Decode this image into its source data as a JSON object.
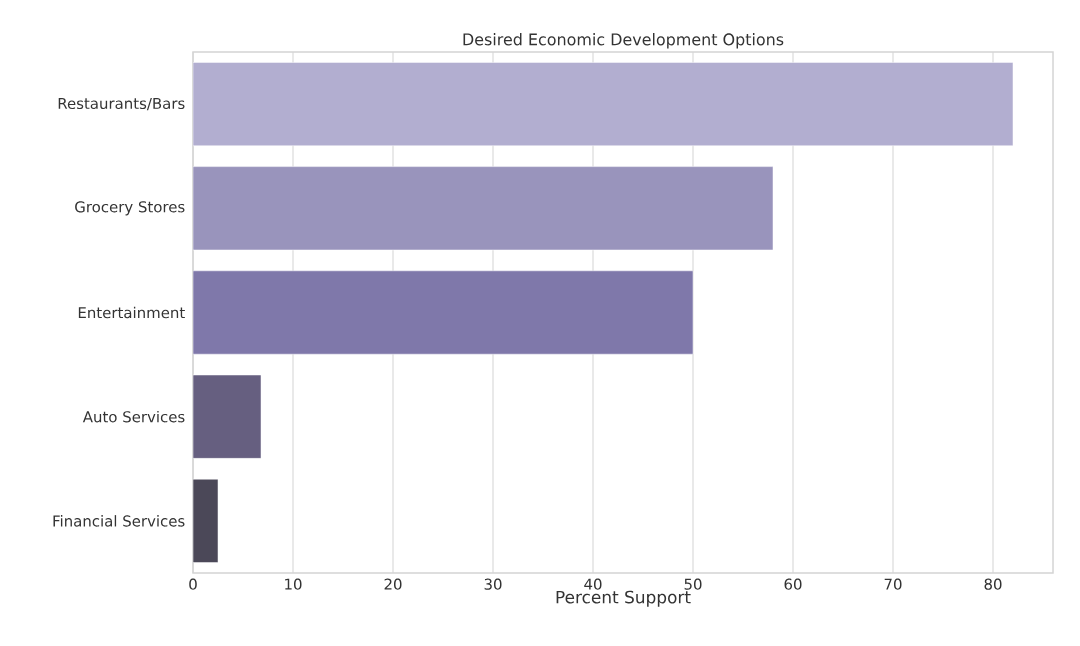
{
  "chart_data": {
    "type": "bar",
    "orientation": "horizontal",
    "title": "Desired Economic Development Options",
    "xlabel": "Percent Support",
    "categories": [
      "Restaurants/Bars",
      "Grocery Stores",
      "Entertainment",
      "Auto Services",
      "Financial Services"
    ],
    "values": [
      82,
      58,
      50,
      6.8,
      2.5
    ],
    "colors": [
      "#b2aed0",
      "#9994bc",
      "#7f78aa",
      "#665f80",
      "#4b4858"
    ],
    "xlim": [
      0,
      86
    ],
    "xticks": [
      0,
      10,
      20,
      30,
      40,
      50,
      60,
      70,
      80
    ],
    "grid": "x"
  }
}
